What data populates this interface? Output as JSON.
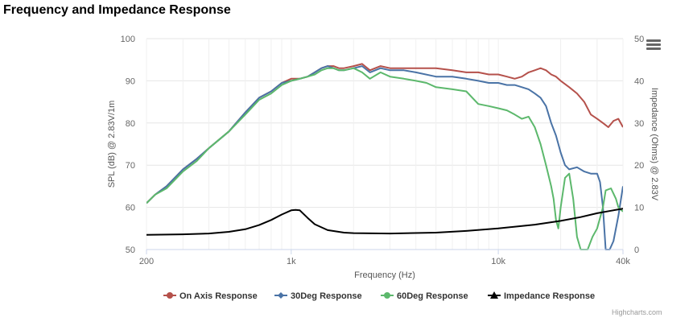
{
  "title": "Frequency and Impedance Response",
  "credits": "Highcharts.com",
  "menu_icon": "hamburger-menu-icon",
  "chart_data": {
    "type": "line",
    "title": "Frequency and Impedance Response",
    "xlabel": "Frequency (Hz)",
    "x_scale": "log",
    "xlim": [
      200,
      40000
    ],
    "x_ticks": [
      {
        "value": 200,
        "label": "200"
      },
      {
        "value": 1000,
        "label": "1k"
      },
      {
        "value": 10000,
        "label": "10k"
      },
      {
        "value": 40000,
        "label": "40k"
      }
    ],
    "ylabel": "SPL (dB) @ 2.83V/1m",
    "ylim": [
      50,
      100
    ],
    "y_ticks": [
      50,
      60,
      70,
      80,
      90,
      100
    ],
    "y2label": "Impedance (Ohms) @ 2.83V",
    "y2lim": [
      0,
      50
    ],
    "y2_ticks": [
      0,
      10,
      20,
      30,
      40,
      50
    ],
    "grid": true,
    "legend_position": "bottom",
    "series": [
      {
        "name": "On Axis Response",
        "color": "#b5514b",
        "axis": "left",
        "points": [
          [
            200,
            61
          ],
          [
            220,
            63
          ],
          [
            250,
            65
          ],
          [
            300,
            69
          ],
          [
            350,
            71.5
          ],
          [
            400,
            74
          ],
          [
            500,
            78
          ],
          [
            600,
            82.5
          ],
          [
            700,
            86
          ],
          [
            800,
            87.5
          ],
          [
            900,
            89.5
          ],
          [
            1000,
            90.5
          ],
          [
            1100,
            90.5
          ],
          [
            1200,
            91
          ],
          [
            1300,
            92
          ],
          [
            1400,
            93
          ],
          [
            1500,
            93.5
          ],
          [
            1600,
            93.5
          ],
          [
            1700,
            93
          ],
          [
            1800,
            93
          ],
          [
            2000,
            93.5
          ],
          [
            2200,
            94
          ],
          [
            2400,
            92.5
          ],
          [
            2700,
            93.5
          ],
          [
            3000,
            93
          ],
          [
            3500,
            93
          ],
          [
            4000,
            93
          ],
          [
            5000,
            93
          ],
          [
            6000,
            92.5
          ],
          [
            7000,
            92
          ],
          [
            8000,
            92
          ],
          [
            9000,
            91.5
          ],
          [
            10000,
            91.5
          ],
          [
            11000,
            91
          ],
          [
            12000,
            90.5
          ],
          [
            13000,
            91
          ],
          [
            14000,
            92
          ],
          [
            15000,
            92.5
          ],
          [
            16000,
            93
          ],
          [
            17000,
            92.5
          ],
          [
            18000,
            91.5
          ],
          [
            19000,
            91
          ],
          [
            20000,
            90
          ],
          [
            22000,
            88.5
          ],
          [
            24000,
            87
          ],
          [
            26000,
            85
          ],
          [
            28000,
            82
          ],
          [
            30000,
            81
          ],
          [
            32000,
            80
          ],
          [
            34000,
            79
          ],
          [
            36000,
            80.5
          ],
          [
            38000,
            81
          ],
          [
            40000,
            79
          ]
        ]
      },
      {
        "name": "30Deg Response",
        "color": "#4a73a6",
        "axis": "left",
        "points": [
          [
            200,
            61
          ],
          [
            220,
            63
          ],
          [
            250,
            65
          ],
          [
            300,
            69
          ],
          [
            350,
            71.5
          ],
          [
            400,
            74
          ],
          [
            500,
            78
          ],
          [
            600,
            82.5
          ],
          [
            700,
            86
          ],
          [
            800,
            87.5
          ],
          [
            900,
            89.5
          ],
          [
            1000,
            90
          ],
          [
            1100,
            90.5
          ],
          [
            1200,
            91
          ],
          [
            1300,
            92
          ],
          [
            1400,
            93
          ],
          [
            1500,
            93.5
          ],
          [
            1600,
            93
          ],
          [
            1700,
            92.5
          ],
          [
            1800,
            92.5
          ],
          [
            2000,
            93
          ],
          [
            2200,
            93.5
          ],
          [
            2400,
            92
          ],
          [
            2700,
            93
          ],
          [
            3000,
            92.5
          ],
          [
            3500,
            92.5
          ],
          [
            4000,
            92
          ],
          [
            5000,
            91
          ],
          [
            6000,
            91
          ],
          [
            7000,
            90.5
          ],
          [
            8000,
            90
          ],
          [
            9000,
            89.5
          ],
          [
            10000,
            89.5
          ],
          [
            11000,
            89
          ],
          [
            12000,
            89
          ],
          [
            13000,
            88.5
          ],
          [
            14000,
            88
          ],
          [
            15000,
            87
          ],
          [
            16000,
            86
          ],
          [
            17000,
            84
          ],
          [
            18000,
            80
          ],
          [
            19000,
            77
          ],
          [
            20000,
            73
          ],
          [
            21000,
            70
          ],
          [
            22000,
            69
          ],
          [
            24000,
            69.5
          ],
          [
            26000,
            68.5
          ],
          [
            28000,
            68
          ],
          [
            30000,
            68
          ],
          [
            31000,
            66
          ],
          [
            32000,
            60
          ],
          [
            33000,
            50
          ],
          [
            34500,
            50
          ],
          [
            36000,
            52
          ],
          [
            38000,
            58
          ],
          [
            40000,
            65
          ]
        ]
      },
      {
        "name": "60Deg Response",
        "color": "#5cb86c",
        "axis": "left",
        "points": [
          [
            200,
            61
          ],
          [
            220,
            63
          ],
          [
            250,
            64.5
          ],
          [
            300,
            68.5
          ],
          [
            350,
            71
          ],
          [
            400,
            74
          ],
          [
            500,
            78
          ],
          [
            600,
            82
          ],
          [
            700,
            85.5
          ],
          [
            800,
            87
          ],
          [
            900,
            89
          ],
          [
            1000,
            90
          ],
          [
            1100,
            90.5
          ],
          [
            1200,
            91
          ],
          [
            1300,
            91.5
          ],
          [
            1400,
            92.5
          ],
          [
            1500,
            93
          ],
          [
            1600,
            93
          ],
          [
            1700,
            92.5
          ],
          [
            1800,
            92.5
          ],
          [
            2000,
            93
          ],
          [
            2200,
            92
          ],
          [
            2400,
            90.5
          ],
          [
            2700,
            92
          ],
          [
            3000,
            91
          ],
          [
            3500,
            90.5
          ],
          [
            4000,
            90
          ],
          [
            4500,
            89.5
          ],
          [
            5000,
            88.5
          ],
          [
            6000,
            88
          ],
          [
            7000,
            87.5
          ],
          [
            8000,
            84.5
          ],
          [
            9000,
            84
          ],
          [
            10000,
            83.5
          ],
          [
            11000,
            83
          ],
          [
            12000,
            82
          ],
          [
            13000,
            81
          ],
          [
            14000,
            81.5
          ],
          [
            15000,
            79
          ],
          [
            16000,
            75
          ],
          [
            17000,
            70
          ],
          [
            18000,
            65
          ],
          [
            18500,
            62
          ],
          [
            19000,
            57
          ],
          [
            19500,
            55
          ],
          [
            20000,
            60
          ],
          [
            21000,
            67
          ],
          [
            22000,
            68
          ],
          [
            23000,
            62
          ],
          [
            24000,
            53
          ],
          [
            25000,
            50
          ],
          [
            27000,
            50
          ],
          [
            28500,
            53
          ],
          [
            30000,
            55
          ],
          [
            32000,
            60
          ],
          [
            33000,
            64
          ],
          [
            35000,
            64.5
          ],
          [
            37000,
            62
          ],
          [
            38000,
            60
          ],
          [
            40000,
            59
          ]
        ]
      },
      {
        "name": "Impedance Response",
        "color": "#000000",
        "axis": "right",
        "points": [
          [
            200,
            3.5
          ],
          [
            300,
            3.6
          ],
          [
            400,
            3.8
          ],
          [
            500,
            4.2
          ],
          [
            600,
            4.8
          ],
          [
            700,
            5.8
          ],
          [
            800,
            7
          ],
          [
            900,
            8.3
          ],
          [
            1000,
            9.3
          ],
          [
            1050,
            9.4
          ],
          [
            1100,
            9.3
          ],
          [
            1200,
            7.5
          ],
          [
            1300,
            6
          ],
          [
            1500,
            4.6
          ],
          [
            1800,
            4
          ],
          [
            2000,
            3.9
          ],
          [
            3000,
            3.8
          ],
          [
            5000,
            4
          ],
          [
            7000,
            4.4
          ],
          [
            10000,
            5
          ],
          [
            15000,
            5.9
          ],
          [
            20000,
            6.8
          ],
          [
            25000,
            7.7
          ],
          [
            30000,
            8.6
          ],
          [
            35000,
            9.2
          ],
          [
            40000,
            9.7
          ]
        ]
      }
    ]
  }
}
